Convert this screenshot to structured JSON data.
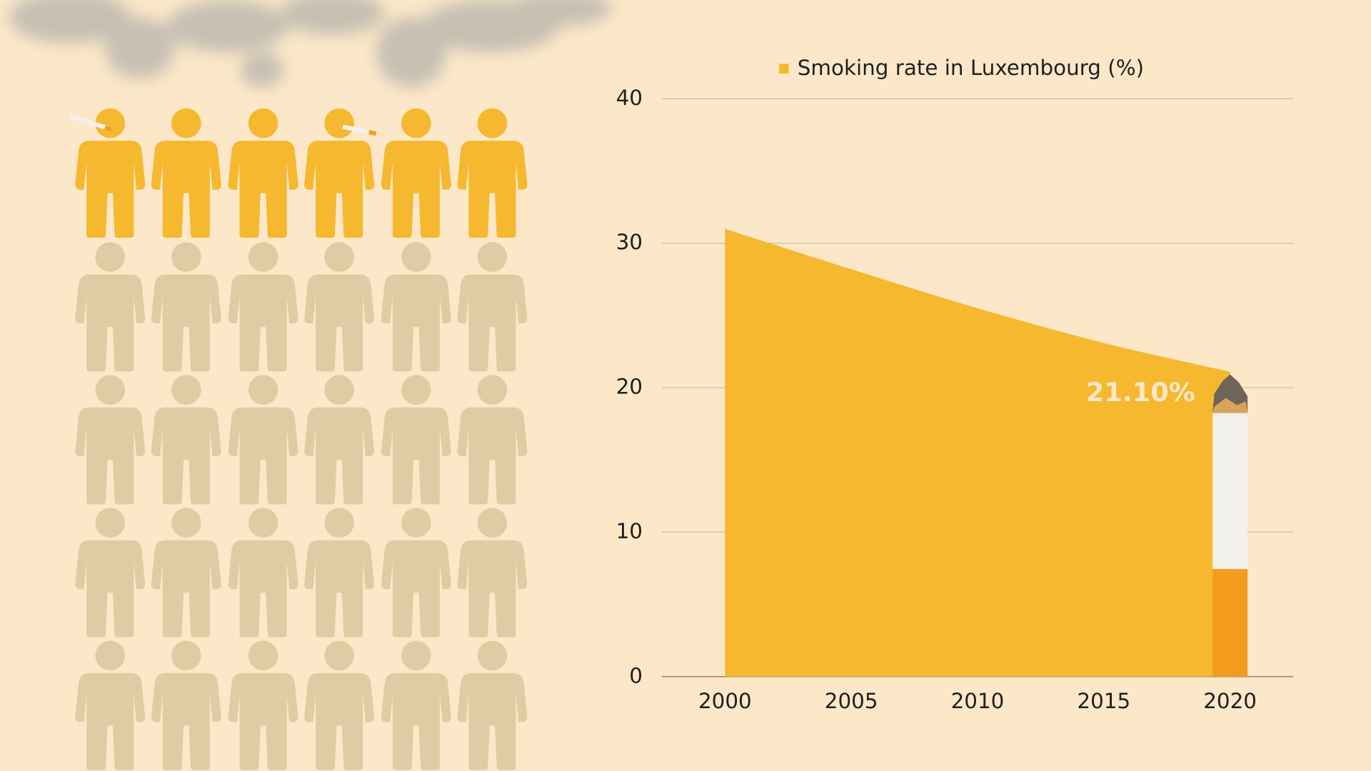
{
  "chart_data": {
    "type": "area",
    "x": [
      2000,
      2005,
      2010,
      2015,
      2020
    ],
    "series": [
      {
        "name": "Smoking rate in Luxembourg (%)",
        "color": "#f5b82e",
        "values": [
          31,
          28.2,
          25.5,
          23.1,
          21.1
        ],
        "value_labels": [
          null,
          null,
          null,
          null,
          "21.10%"
        ]
      }
    ],
    "xlim": [
      1997.5,
      2022.5
    ],
    "xticks": [
      2000,
      2005,
      2010,
      2015,
      2020
    ],
    "ylim": [
      0,
      40
    ],
    "yticks": [
      0,
      10,
      20,
      30,
      40
    ],
    "grid": true,
    "legend": "top"
  }
}
